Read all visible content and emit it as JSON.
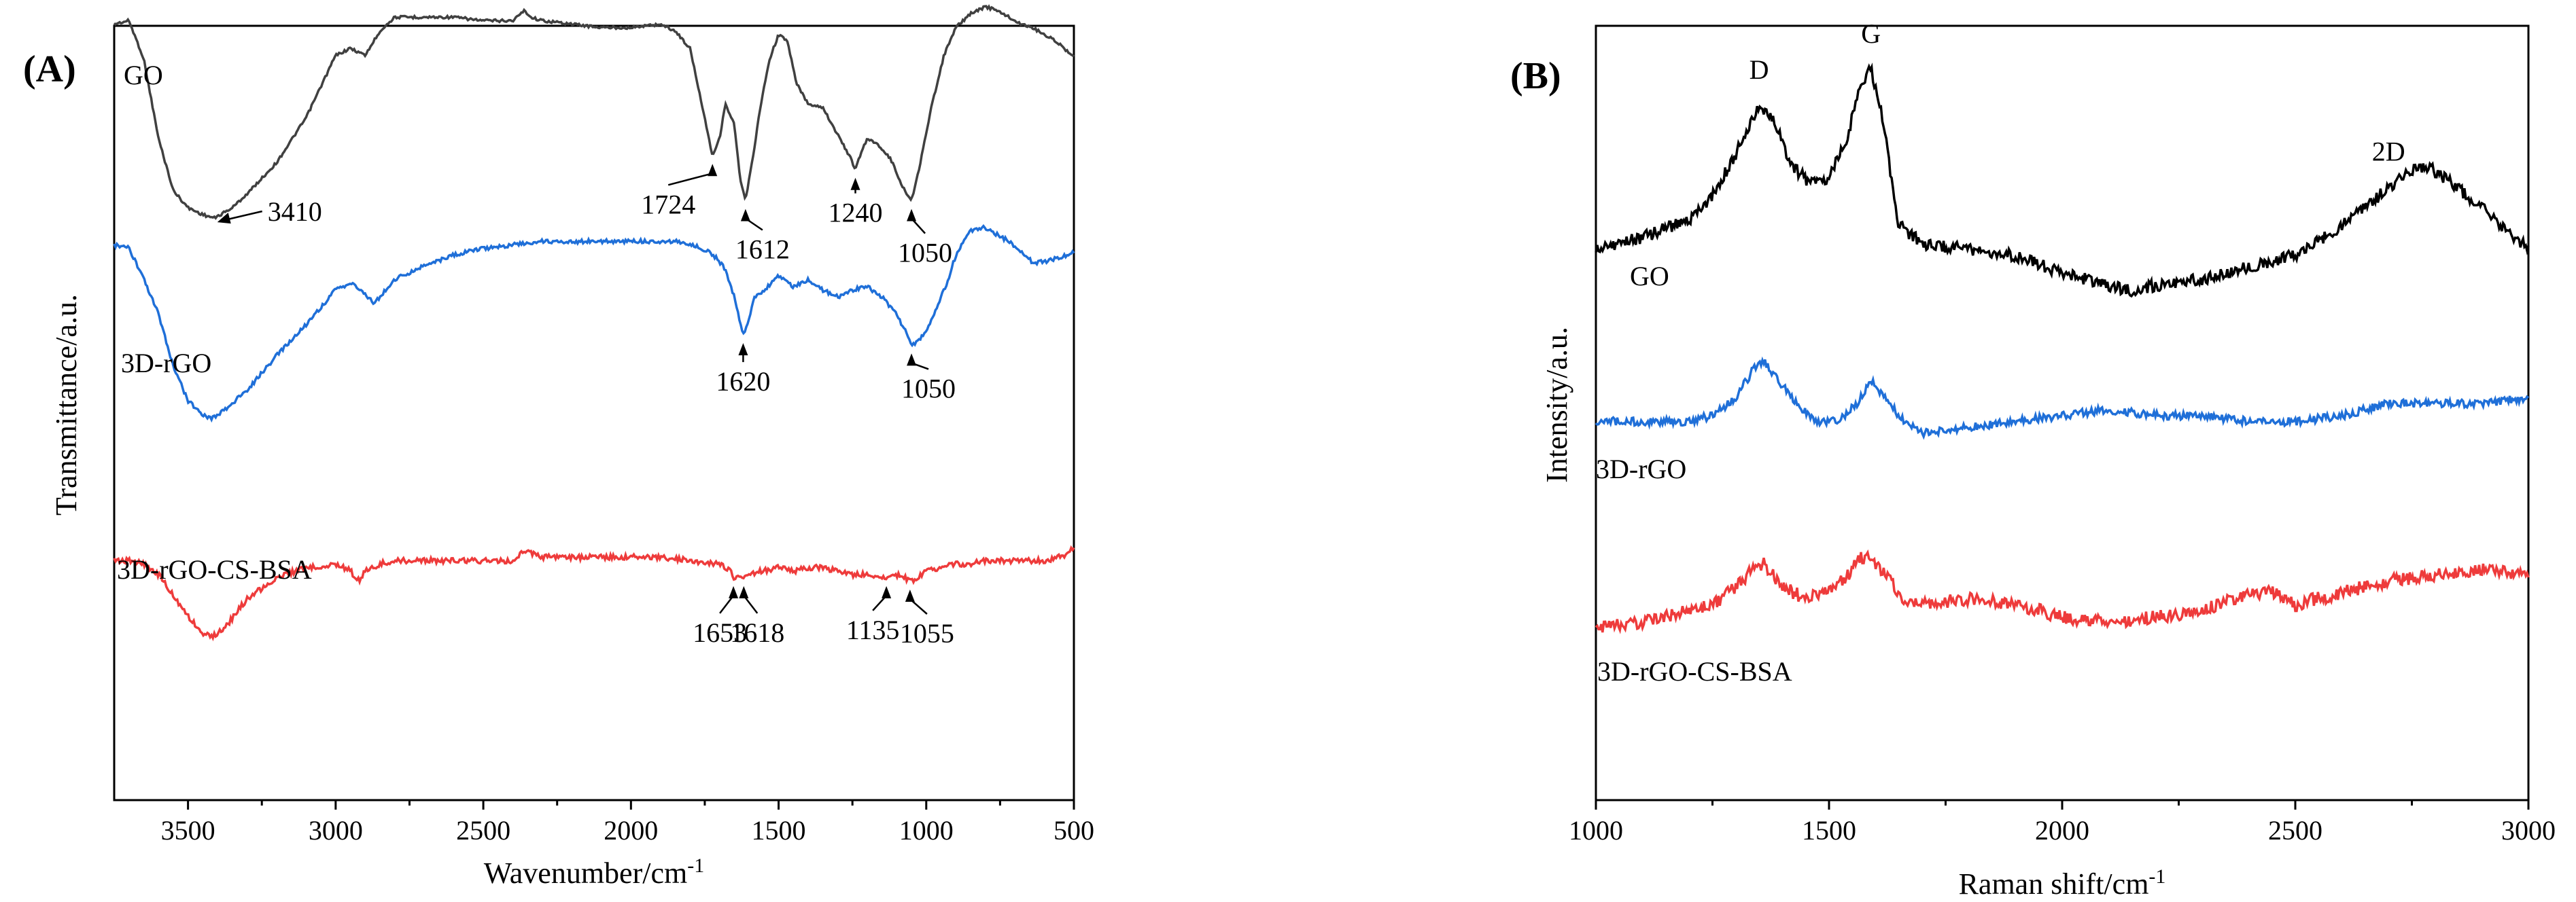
{
  "chart_data": [
    {
      "type": "line",
      "panel_label": "(A)",
      "xlabel": "Wavenumber/cm",
      "xlabel_sup": "-1",
      "ylabel": "Transmittance/a.u.",
      "xlim": [
        3750,
        500
      ],
      "x_reversed": true,
      "xticks": [
        3500,
        3000,
        2500,
        2000,
        1500,
        1000,
        500
      ],
      "xtick_labels": [
        "3500",
        "3000",
        "2500",
        "2000",
        "1500",
        "1000",
        "500"
      ],
      "grid": false,
      "series": [
        {
          "name": "GO",
          "color": "#404040",
          "x": [
            3750,
            3700,
            3650,
            3600,
            3550,
            3500,
            3450,
            3410,
            3350,
            3300,
            3200,
            3100,
            3000,
            2950,
            2900,
            2850,
            2800,
            2700,
            2600,
            2500,
            2400,
            2360,
            2340,
            2300,
            2200,
            2100,
            2000,
            1900,
            1850,
            1800,
            1760,
            1724,
            1700,
            1680,
            1650,
            1630,
            1612,
            1590,
            1560,
            1530,
            1500,
            1470,
            1440,
            1400,
            1350,
            1300,
            1260,
            1240,
            1220,
            1200,
            1160,
            1120,
            1080,
            1050,
            1020,
            980,
            940,
            900,
            850,
            800,
            760,
            720,
            680,
            640,
            600,
            560,
            520,
            500
          ],
          "y": [
            0.95,
            0.96,
            0.85,
            0.62,
            0.47,
            0.42,
            0.4,
            0.39,
            0.42,
            0.46,
            0.55,
            0.68,
            0.86,
            0.88,
            0.86,
            0.93,
            0.97,
            0.97,
            0.97,
            0.96,
            0.96,
            0.99,
            0.97,
            0.96,
            0.95,
            0.94,
            0.94,
            0.95,
            0.93,
            0.88,
            0.72,
            0.57,
            0.62,
            0.72,
            0.66,
            0.5,
            0.44,
            0.55,
            0.72,
            0.85,
            0.92,
            0.9,
            0.78,
            0.72,
            0.71,
            0.63,
            0.57,
            0.53,
            0.58,
            0.62,
            0.6,
            0.56,
            0.48,
            0.44,
            0.55,
            0.72,
            0.86,
            0.94,
            0.98,
            1.0,
            0.99,
            0.97,
            0.95,
            0.94,
            0.92,
            0.9,
            0.87,
            0.86
          ]
        },
        {
          "name": "3D-rGO",
          "color": "#1f6fd8",
          "x": [
            3750,
            3700,
            3650,
            3600,
            3550,
            3500,
            3450,
            3420,
            3380,
            3300,
            3200,
            3100,
            3000,
            2950,
            2900,
            2870,
            2850,
            2800,
            2700,
            2600,
            2500,
            2400,
            2300,
            2200,
            2100,
            2000,
            1900,
            1850,
            1800,
            1760,
            1720,
            1680,
            1650,
            1620,
            1600,
            1580,
            1550,
            1500,
            1450,
            1400,
            1350,
            1300,
            1250,
            1200,
            1150,
            1100,
            1070,
            1050,
            1020,
            1000,
            970,
            930,
            900,
            850,
            800,
            760,
            720,
            680,
            640,
            600,
            560,
            520,
            500
          ],
          "y": [
            0.95,
            0.94,
            0.85,
            0.75,
            0.6,
            0.5,
            0.46,
            0.45,
            0.47,
            0.53,
            0.63,
            0.72,
            0.82,
            0.84,
            0.81,
            0.78,
            0.8,
            0.85,
            0.89,
            0.92,
            0.94,
            0.95,
            0.96,
            0.96,
            0.96,
            0.96,
            0.96,
            0.96,
            0.95,
            0.94,
            0.92,
            0.88,
            0.8,
            0.69,
            0.74,
            0.8,
            0.82,
            0.86,
            0.83,
            0.85,
            0.82,
            0.8,
            0.82,
            0.83,
            0.8,
            0.75,
            0.7,
            0.66,
            0.68,
            0.7,
            0.76,
            0.84,
            0.92,
            0.99,
            1.0,
            0.98,
            0.96,
            0.93,
            0.9,
            0.9,
            0.91,
            0.92,
            0.93
          ]
        },
        {
          "name": "3D-rGO-CS-BSA",
          "color": "#ee3b3b",
          "x": [
            3750,
            3700,
            3650,
            3600,
            3550,
            3500,
            3450,
            3420,
            3380,
            3300,
            3200,
            3100,
            3000,
            2950,
            2920,
            2900,
            2850,
            2800,
            2700,
            2600,
            2500,
            2400,
            2360,
            2300,
            2200,
            2100,
            2000,
            1900,
            1800,
            1700,
            1660,
            1653,
            1630,
            1618,
            1600,
            1560,
            1500,
            1450,
            1400,
            1350,
            1300,
            1250,
            1200,
            1135,
            1100,
            1070,
            1055,
            1030,
            1000,
            950,
            900,
            850,
            800,
            700,
            600,
            550,
            520,
            500
          ],
          "y": [
            0.96,
            0.96,
            0.95,
            0.92,
            0.86,
            0.8,
            0.75,
            0.74,
            0.76,
            0.85,
            0.91,
            0.94,
            0.95,
            0.93,
            0.9,
            0.93,
            0.95,
            0.96,
            0.96,
            0.96,
            0.96,
            0.96,
            0.99,
            0.97,
            0.97,
            0.97,
            0.97,
            0.97,
            0.96,
            0.95,
            0.93,
            0.91,
            0.92,
            0.91,
            0.92,
            0.93,
            0.94,
            0.93,
            0.94,
            0.94,
            0.93,
            0.92,
            0.92,
            0.91,
            0.92,
            0.91,
            0.9,
            0.91,
            0.93,
            0.94,
            0.95,
            0.95,
            0.96,
            0.96,
            0.96,
            0.97,
            0.98,
            1.0
          ]
        }
      ],
      "series_labels": [
        "GO",
        "3D-rGO",
        "3D-rGO-CS-BSA"
      ],
      "annotations": [
        {
          "text": "3410",
          "series": 0,
          "x": 3410
        },
        {
          "text": "1724",
          "series": 0,
          "x": 1724
        },
        {
          "text": "1612",
          "series": 0,
          "x": 1612
        },
        {
          "text": "1240",
          "series": 0,
          "x": 1240
        },
        {
          "text": "1050",
          "series": 0,
          "x": 1050
        },
        {
          "text": "1620",
          "series": 1,
          "x": 1620
        },
        {
          "text": "1050",
          "series": 1,
          "x": 1050
        },
        {
          "text": "1653",
          "series": 2,
          "x": 1653
        },
        {
          "text": "1618",
          "series": 2,
          "x": 1618
        },
        {
          "text": "1135",
          "series": 2,
          "x": 1135
        },
        {
          "text": "1055",
          "series": 2,
          "x": 1055
        }
      ]
    },
    {
      "type": "line",
      "panel_label": "(B)",
      "xlabel": "Raman shift/cm",
      "xlabel_sup": "-1",
      "ylabel": "Intensity/a.u.",
      "xlim": [
        1000,
        3000
      ],
      "xticks": [
        1000,
        1500,
        2000,
        2500,
        3000
      ],
      "xtick_labels": [
        "1000",
        "1500",
        "2000",
        "2500",
        "3000"
      ],
      "grid": false,
      "series": [
        {
          "name": "GO",
          "color": "#000000",
          "x": [
            1000,
            1100,
            1200,
            1250,
            1300,
            1350,
            1380,
            1420,
            1460,
            1500,
            1540,
            1570,
            1590,
            1610,
            1650,
            1700,
            1800,
            1900,
            2000,
            2100,
            2150,
            2200,
            2300,
            2400,
            2500,
            2560,
            2620,
            2680,
            2740,
            2780,
            2820,
            2900,
            3000
          ],
          "y": [
            0.56,
            0.58,
            0.61,
            0.65,
            0.72,
            0.8,
            0.78,
            0.7,
            0.67,
            0.68,
            0.75,
            0.84,
            0.86,
            0.8,
            0.6,
            0.57,
            0.56,
            0.55,
            0.52,
            0.5,
            0.49,
            0.5,
            0.51,
            0.53,
            0.55,
            0.58,
            0.61,
            0.65,
            0.69,
            0.7,
            0.68,
            0.63,
            0.56
          ]
        },
        {
          "name": "3D-rGO",
          "color": "#1f6fd8",
          "x": [
            1000,
            1100,
            1200,
            1250,
            1300,
            1340,
            1360,
            1400,
            1440,
            1480,
            1520,
            1560,
            1590,
            1620,
            1660,
            1700,
            1800,
            1900,
            2000,
            2100,
            2200,
            2300,
            2400,
            2500,
            2600,
            2700,
            2800,
            2900,
            3000
          ],
          "y": [
            0.38,
            0.38,
            0.38,
            0.39,
            0.42,
            0.47,
            0.48,
            0.44,
            0.4,
            0.38,
            0.38,
            0.41,
            0.45,
            0.42,
            0.38,
            0.36,
            0.37,
            0.38,
            0.39,
            0.4,
            0.39,
            0.39,
            0.38,
            0.38,
            0.39,
            0.41,
            0.41,
            0.41,
            0.42
          ]
        },
        {
          "name": "3D-rGO-CS-BSA",
          "color": "#ee3b3b",
          "x": [
            1000,
            1100,
            1200,
            1250,
            1300,
            1340,
            1360,
            1400,
            1450,
            1500,
            1540,
            1570,
            1590,
            1620,
            1660,
            1700,
            1800,
            1900,
            2000,
            2100,
            2200,
            2300,
            2400,
            2450,
            2500,
            2600,
            2700,
            2800,
            2900,
            3000
          ],
          "y": [
            0.17,
            0.18,
            0.2,
            0.21,
            0.24,
            0.27,
            0.28,
            0.24,
            0.22,
            0.23,
            0.26,
            0.29,
            0.29,
            0.26,
            0.22,
            0.21,
            0.22,
            0.21,
            0.19,
            0.18,
            0.19,
            0.2,
            0.23,
            0.23,
            0.21,
            0.23,
            0.25,
            0.26,
            0.27,
            0.26
          ]
        }
      ],
      "series_labels": [
        "GO",
        "3D-rGO",
        "3D-rGO-CS-BSA"
      ],
      "annotations": [
        {
          "text": "D",
          "series": 0,
          "x": 1350
        },
        {
          "text": "G",
          "series": 0,
          "x": 1590
        },
        {
          "text": "2D",
          "series": 0,
          "x": 2700
        }
      ]
    }
  ]
}
